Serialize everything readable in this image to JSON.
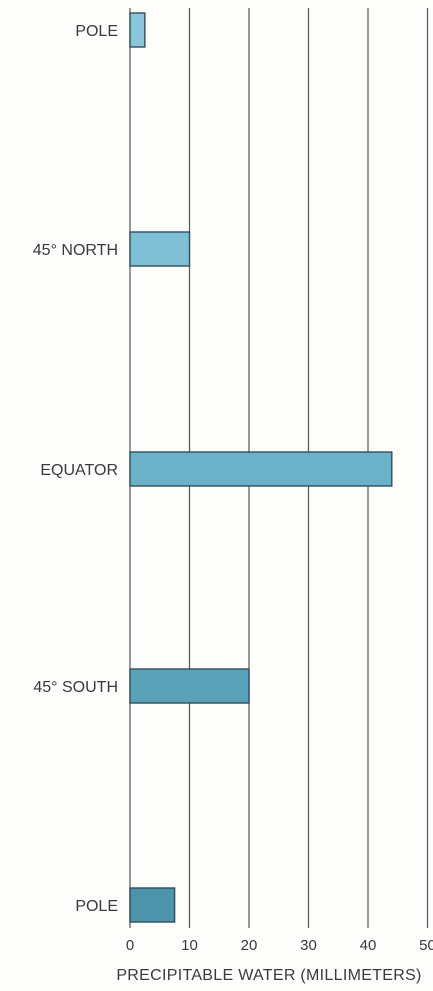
{
  "chart_data": {
    "type": "bar",
    "orientation": "horizontal",
    "categories": [
      "POLE",
      "45° NORTH",
      "EQUATOR",
      "45° SOUTH",
      "POLE"
    ],
    "values": [
      2.5,
      10,
      44,
      20,
      7.5
    ],
    "xlabel": "PRECIPITABLE WATER (MILLIMETERS)",
    "ylabel": "",
    "title": "",
    "xlim": [
      0,
      50
    ],
    "x_ticks": [
      0,
      10,
      20,
      30,
      40,
      50
    ],
    "grid": "vertical lines",
    "legend": "none",
    "bar_colors": [
      "#8cc6dc",
      "#7fbfd6",
      "#6bb1c8",
      "#5aa2ba",
      "#4c93ab"
    ]
  }
}
